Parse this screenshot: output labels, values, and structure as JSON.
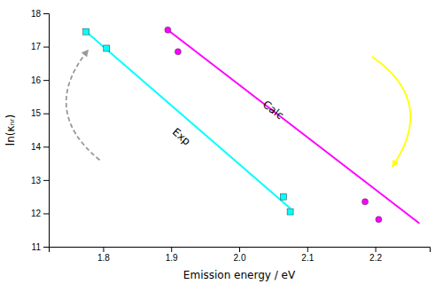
{
  "chart_data": {
    "type": "line",
    "xlabel": "Emission energy / eV",
    "ylabel": "ln(κₙᵣ)",
    "xlim": [
      1.72,
      2.28
    ],
    "ylim": [
      11,
      18
    ],
    "xticks": [
      1.8,
      1.9,
      {
        "value": 2.0,
        "label": "2.0"
      },
      2.1,
      2.2
    ],
    "yticks": [
      11,
      12,
      13,
      14,
      15,
      16,
      17,
      18
    ],
    "series": [
      {
        "type": "line",
        "color": "#00ffff",
        "x": [
          1.775,
          2.075
        ],
        "values": [
          17.45,
          12.15
        ]
      },
      {
        "type": "line",
        "color": "#ff00ff",
        "x": [
          1.895,
          2.265
        ],
        "values": [
          17.5,
          11.7
        ]
      },
      {
        "type": "scatter",
        "marker": "square",
        "color": "#00ffff",
        "x": [
          1.775,
          1.805,
          2.065,
          2.075
        ],
        "values": [
          17.45,
          16.95,
          12.5,
          12.05
        ]
      },
      {
        "type": "scatter",
        "marker": "circle",
        "color": "#ff00ff",
        "x": [
          1.895,
          1.91,
          2.185,
          2.205
        ],
        "values": [
          17.5,
          16.85,
          12.35,
          11.82
        ]
      }
    ],
    "annotations": [
      {
        "text": "Exp",
        "x": 1.915,
        "y": 14.3
      },
      {
        "text": "Calc",
        "x": 2.05,
        "y": 15.1
      }
    ],
    "arrows": [
      {
        "x": [
          1.795,
          1.778
        ],
        "y": [
          13.6,
          16.9
        ],
        "color": "#999999",
        "line_style": "dashed"
      },
      {
        "x": [
          2.195,
          2.225
        ],
        "y": [
          16.7,
          13.4
        ],
        "color": "#ffff00",
        "line_style": "solid"
      }
    ]
  }
}
